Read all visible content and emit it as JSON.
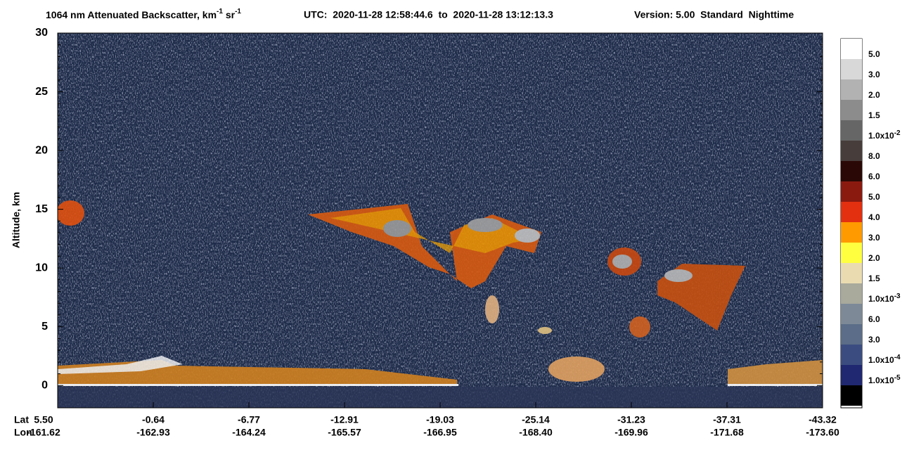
{
  "chart_data": {
    "type": "curtain",
    "title": {
      "quantity": "1064 nm Attenuated Backscatter, km",
      "unit_exp_1": "-1",
      "unit_2": " sr",
      "unit_exp_2": "-1",
      "time": "UTC:  2020-11-28 12:58:44.6  to  2020-11-28 13:12:13.3",
      "version": "Version: 5.00  Standard  Nighttime"
    },
    "y_label": "Altitude, km",
    "ylim": [
      -1.9,
      30
    ],
    "yticks": [
      0,
      5,
      10,
      15,
      20,
      25,
      30
    ],
    "x_rows": [
      {
        "name": "Lat",
        "labels": [
          "5.50",
          "-0.64",
          "-6.77",
          "-12.91",
          "-19.03",
          "-25.14",
          "-31.23",
          "-37.31",
          "-43.32"
        ]
      },
      {
        "name": "Lon",
        "labels": [
          "-161.62",
          "-162.93",
          "-164.24",
          "-165.57",
          "-166.95",
          "-168.40",
          "-169.96",
          "-171.68",
          "-173.60"
        ]
      }
    ],
    "colorbar": {
      "colors": [
        "#ffffff",
        "#d8d8d8",
        "#b2b2b2",
        "#8c8c8c",
        "#666666",
        "#473d3b",
        "#2a0805",
        "#8a1a10",
        "#e33010",
        "#ff9a00",
        "#ffff40",
        "#eadcb0",
        "#a9a99c",
        "#7d8997",
        "#5b6d88",
        "#3b4d80",
        "#1f2870",
        "#000000"
      ],
      "labels": [
        {
          "m": "5.0"
        },
        {
          "m": "3.0"
        },
        {
          "m": "2.0"
        },
        {
          "m": "1.5"
        },
        {
          "m": "1.0x10",
          "e": "-2"
        },
        {
          "m": "8.0"
        },
        {
          "m": "6.0"
        },
        {
          "m": "5.0"
        },
        {
          "m": "4.0"
        },
        {
          "m": "3.0"
        },
        {
          "m": "2.0"
        },
        {
          "m": "1.5"
        },
        {
          "m": "1.0x10",
          "e": "-3"
        },
        {
          "m": "6.0"
        },
        {
          "m": "3.0"
        },
        {
          "m": "1.0x10",
          "e": "-4"
        },
        {
          "m": "1.0x10",
          "e": "-5"
        }
      ]
    }
  }
}
